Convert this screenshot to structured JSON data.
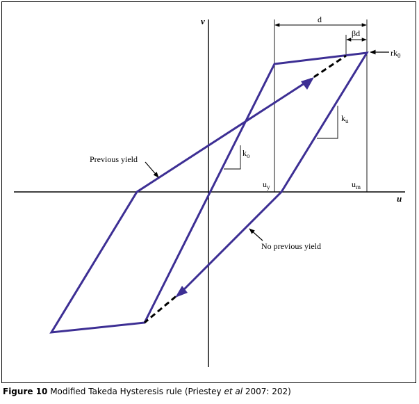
{
  "colors": {
    "curve": "#3d2f94",
    "line": "#000000"
  },
  "labels": {
    "axis_v": "v",
    "axis_u": "u",
    "d": "d",
    "beta_d": "βd",
    "rk0": "rk",
    "rk0_sub": "0",
    "ku": "k",
    "ku_sub": "u",
    "ko": "k",
    "ko_sub": "o",
    "uy": "u",
    "uy_sub": "y",
    "um": "u",
    "um_sub": "m",
    "previous_yield": "Previous yield",
    "no_previous_yield": "No previous yield"
  },
  "caption": {
    "figure": "Figure 10",
    "text_before": " Modified Takeda Hysteresis rule (Priestey ",
    "etal": "et al",
    "text_after": " 2007: 202)"
  }
}
